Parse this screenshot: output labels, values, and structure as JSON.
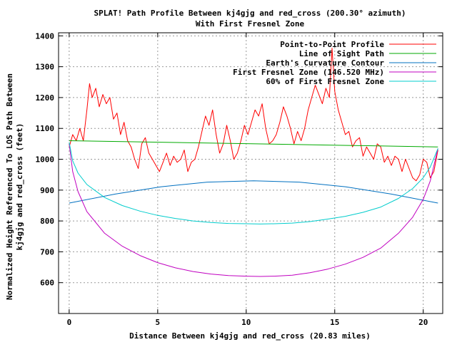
{
  "chart_data": {
    "type": "line",
    "title_line1": "SPLAT! Path Profile Between kj4gjg and red_cross (200.30° azimuth)",
    "title_line2": "With First Fresnel Zone",
    "xlabel": "Distance Between kj4gjg and red_cross (20.83 miles)",
    "ylabel_line1": "Normalized Height Referenced To LOS Path Between",
    "ylabel_line2": "kj4gjg and red_cross (feet)",
    "xlim": [
      -0.6,
      21.1
    ],
    "ylim": [
      500,
      1410
    ],
    "x_ticks": [
      0,
      5,
      10,
      15,
      20
    ],
    "y_ticks": [
      600,
      700,
      800,
      900,
      1000,
      1100,
      1200,
      1300,
      1400
    ],
    "grid": true,
    "legend_position": "top-right",
    "series": [
      {
        "name": "Point-to-Point Profile",
        "color": "#ff0000",
        "x": [
          0,
          0.2,
          0.4,
          0.6,
          0.8,
          1.0,
          1.15,
          1.3,
          1.5,
          1.7,
          1.9,
          2.1,
          2.3,
          2.5,
          2.7,
          2.9,
          3.1,
          3.3,
          3.5,
          3.7,
          3.9,
          4.1,
          4.3,
          4.5,
          4.7,
          4.9,
          5.1,
          5.3,
          5.5,
          5.7,
          5.9,
          6.1,
          6.3,
          6.5,
          6.7,
          6.9,
          7.1,
          7.3,
          7.5,
          7.7,
          7.9,
          8.1,
          8.3,
          8.5,
          8.7,
          8.9,
          9.1,
          9.3,
          9.5,
          9.7,
          9.9,
          10.1,
          10.3,
          10.5,
          10.7,
          10.9,
          11.1,
          11.3,
          11.5,
          11.7,
          11.9,
          12.1,
          12.3,
          12.5,
          12.7,
          12.9,
          13.1,
          13.3,
          13.5,
          13.7,
          13.9,
          14.1,
          14.3,
          14.5,
          14.7,
          14.85,
          15.0,
          15.2,
          15.4,
          15.6,
          15.8,
          16.0,
          16.2,
          16.4,
          16.6,
          16.8,
          17.0,
          17.2,
          17.4,
          17.6,
          17.8,
          18.0,
          18.2,
          18.4,
          18.6,
          18.8,
          19.0,
          19.2,
          19.4,
          19.6,
          19.8,
          20.0,
          20.2,
          20.4,
          20.6,
          20.83
        ],
        "y": [
          1040,
          1080,
          1060,
          1100,
          1060,
          1160,
          1245,
          1200,
          1230,
          1170,
          1210,
          1180,
          1200,
          1130,
          1150,
          1080,
          1120,
          1060,
          1040,
          1000,
          970,
          1050,
          1070,
          1020,
          1000,
          980,
          960,
          990,
          1020,
          980,
          1010,
          990,
          1000,
          1030,
          960,
          990,
          1000,
          1040,
          1090,
          1140,
          1110,
          1160,
          1080,
          1020,
          1050,
          1110,
          1060,
          1000,
          1020,
          1060,
          1110,
          1080,
          1120,
          1160,
          1140,
          1180,
          1100,
          1050,
          1060,
          1080,
          1120,
          1170,
          1140,
          1100,
          1050,
          1090,
          1060,
          1100,
          1160,
          1200,
          1240,
          1210,
          1180,
          1230,
          1200,
          1360,
          1220,
          1160,
          1120,
          1080,
          1090,
          1040,
          1060,
          1070,
          1010,
          1040,
          1020,
          1000,
          1050,
          1040,
          990,
          1010,
          980,
          1010,
          1000,
          960,
          1000,
          970,
          940,
          930,
          950,
          1000,
          990,
          940,
          960,
          1030
        ]
      },
      {
        "name": "Line of Sight Path",
        "color": "#00aa00",
        "x": [
          0,
          20.83
        ],
        "y": [
          1060,
          1040
        ]
      },
      {
        "name": "Earth's Curvature Contour",
        "color": "#0070c0",
        "x": [
          0,
          2.6,
          5.2,
          7.8,
          10.42,
          13.0,
          15.6,
          18.2,
          20.83
        ],
        "y": [
          858,
          887,
          911,
          926,
          930,
          926,
          911,
          887,
          858
        ]
      },
      {
        "name": "First Fresnel Zone (146.520 MHz)",
        "color": "#c000c0",
        "x": [
          0,
          0.2,
          0.5,
          1.0,
          2.0,
          3.0,
          4.0,
          5.0,
          6.0,
          7.0,
          8.0,
          9.0,
          10.0,
          10.8,
          11.6,
          12.6,
          13.6,
          14.6,
          15.6,
          16.6,
          17.6,
          18.6,
          19.4,
          20.0,
          20.4,
          20.83
        ],
        "y": [
          1050,
          960,
          895,
          830,
          760,
          718,
          688,
          665,
          648,
          636,
          628,
          623,
          621,
          620,
          621,
          624,
          632,
          644,
          660,
          682,
          712,
          760,
          812,
          870,
          930,
          1035
        ]
      },
      {
        "name": "60% of First Fresnel Zone",
        "color": "#00cccc",
        "x": [
          0,
          0.2,
          0.5,
          1.0,
          2.0,
          3.0,
          4.0,
          5.0,
          6.0,
          7.0,
          8.0,
          9.0,
          10.0,
          10.8,
          11.6,
          12.6,
          13.6,
          14.6,
          15.6,
          16.6,
          17.6,
          18.6,
          19.4,
          20.0,
          20.4,
          20.83
        ],
        "y": [
          1055,
          995,
          955,
          918,
          876,
          850,
          832,
          818,
          808,
          800,
          795,
          792,
          791,
          790,
          791,
          793,
          798,
          806,
          815,
          828,
          845,
          873,
          905,
          940,
          975,
          1035
        ]
      }
    ]
  }
}
